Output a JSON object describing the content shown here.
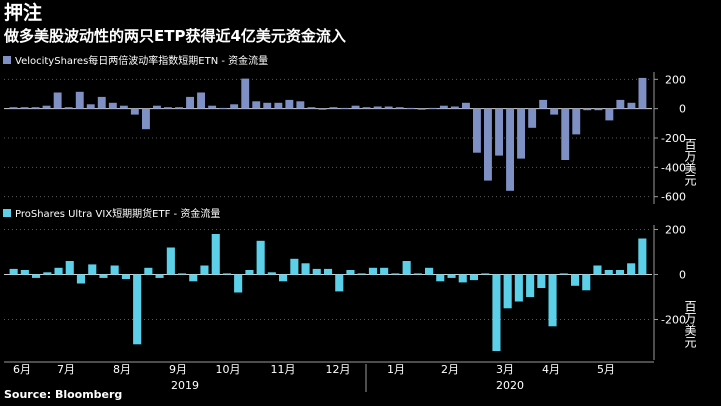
{
  "header": {
    "tag": "押注",
    "headline": "做多美股波动性的两只ETP获得近4亿美元资金流入"
  },
  "source": "Source: Bloomberg",
  "chart_data": [
    {
      "type": "bar",
      "title": "VelocityShares每日两倍波动率指数短期ETN - 资金流量",
      "ylabel": "百万美元",
      "color": "#7f91c4",
      "ylim": [
        -650,
        250
      ],
      "yticks": [
        200,
        0,
        -200,
        -400,
        -600
      ],
      "y_axis_side": "right",
      "grid": "horizontal dotted",
      "values": [
        10,
        10,
        10,
        20,
        110,
        10,
        115,
        30,
        80,
        40,
        20,
        -40,
        -140,
        20,
        10,
        10,
        80,
        110,
        20,
        5,
        30,
        205,
        50,
        40,
        40,
        60,
        50,
        10,
        0,
        10,
        5,
        20,
        10,
        15,
        15,
        10,
        5,
        0,
        5,
        20,
        15,
        40,
        -300,
        -490,
        -320,
        -560,
        -340,
        -130,
        60,
        -40,
        -350,
        -175,
        -10,
        -10,
        -80,
        60,
        40,
        210
      ],
      "x_ticks": [
        "6月",
        "7月",
        "8月",
        "9月",
        "10月",
        "11月",
        "12月",
        "1月",
        "2月",
        "3月",
        "4月",
        "5月"
      ],
      "year_labels": [
        "2019",
        "2020"
      ]
    },
    {
      "type": "bar",
      "title": "ProShares Ultra VIX短期期货ETF - 资金流量",
      "ylabel": "百万美元",
      "color": "#5bd0e8",
      "ylim": [
        -380,
        220
      ],
      "yticks": [
        200,
        0,
        -200
      ],
      "y_axis_side": "right",
      "grid": "horizontal dotted",
      "values": [
        25,
        20,
        -15,
        10,
        30,
        60,
        -40,
        45,
        -15,
        40,
        -20,
        -310,
        30,
        -15,
        120,
        5,
        -30,
        40,
        180,
        5,
        -80,
        20,
        150,
        10,
        -30,
        70,
        50,
        25,
        25,
        -75,
        20,
        5,
        30,
        30,
        5,
        60,
        5,
        30,
        -30,
        -15,
        -35,
        -25,
        5,
        -340,
        -150,
        -120,
        -100,
        -60,
        -230,
        5,
        -50,
        -70,
        40,
        20,
        20,
        50,
        160
      ],
      "x_ticks": [
        "6月",
        "7月",
        "8月",
        "9月",
        "10月",
        "11月",
        "12月",
        "1月",
        "2月",
        "3月",
        "4月",
        "5月"
      ],
      "year_labels": [
        "2019",
        "2020"
      ]
    }
  ]
}
